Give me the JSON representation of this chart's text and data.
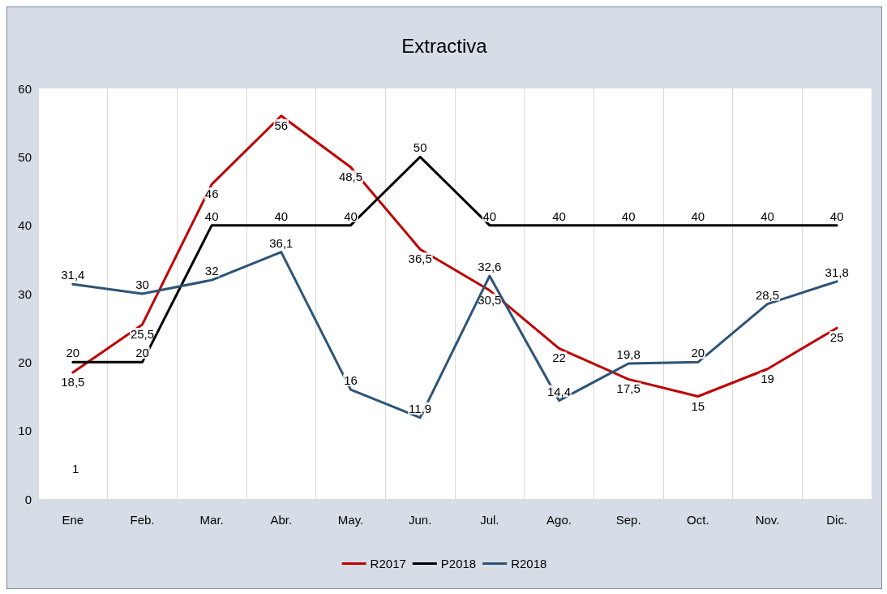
{
  "chart_data": {
    "type": "line",
    "title": "Extractiva",
    "categories": [
      "Ene",
      "Feb.",
      "Mar.",
      "Abr.",
      "May.",
      "Jun.",
      "Jul.",
      "Ago.",
      "Sep.",
      "Oct.",
      "Nov.",
      "Dic."
    ],
    "series": [
      {
        "name": "R2017",
        "color": "#c00000",
        "values": [
          18.5,
          25.5,
          46,
          56,
          48.5,
          36.5,
          30.5,
          22,
          17.5,
          15,
          19,
          25
        ],
        "value_labels": [
          "18,5",
          "25,5",
          "46",
          "56",
          "48,5",
          "36,5",
          "30,5",
          "22",
          "17,5",
          "15",
          "19",
          "25"
        ]
      },
      {
        "name": "P2018",
        "color": "#000000",
        "values": [
          20,
          20,
          40,
          40,
          40,
          50,
          40,
          40,
          40,
          40,
          40,
          40
        ],
        "value_labels": [
          "20",
          "20",
          "40",
          "40",
          "40",
          "50",
          "40",
          "40",
          "40",
          "40",
          "40",
          "40"
        ]
      },
      {
        "name": "R2018",
        "color": "#2e5378",
        "values": [
          31.4,
          30,
          32,
          36.1,
          16,
          11.9,
          32.6,
          14.4,
          19.8,
          20,
          28.5,
          31.8
        ],
        "value_labels": [
          "31,4",
          "30",
          "32",
          "36,1",
          "16",
          "11,9",
          "32,6",
          "14,4",
          "19,8",
          "20",
          "28,5",
          "31,8"
        ]
      }
    ],
    "annotations": [
      "1"
    ],
    "ylim": [
      0,
      60
    ],
    "yticks": [
      0,
      10,
      20,
      30,
      40,
      50,
      60
    ],
    "grid": "x",
    "legend": "bottom",
    "marker": "none",
    "line_style": "solid"
  }
}
